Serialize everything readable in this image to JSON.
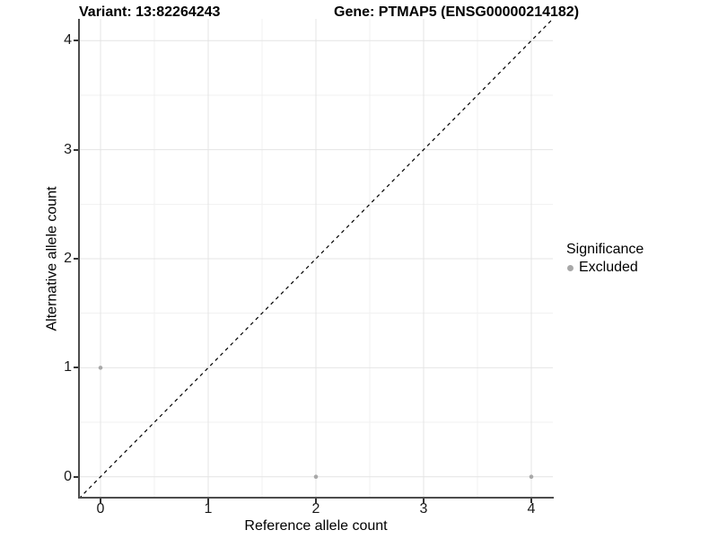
{
  "figure": {
    "title_left": "Variant: 13:82264243",
    "title_right": "Gene: PTMAP5 (ENSG00000214182)"
  },
  "chart_data": {
    "type": "scatter",
    "title": "Variant: 13:82264243 / Gene: PTMAP5 (ENSG00000214182)",
    "xlabel": "Reference allele count",
    "ylabel": "Alternative allele count",
    "xlim": [
      -0.2,
      4.2
    ],
    "ylim": [
      -0.2,
      4.2
    ],
    "xticks": [
      0,
      1,
      2,
      3,
      4
    ],
    "yticks": [
      0,
      1,
      2,
      3,
      4
    ],
    "x_minor_breaks": [
      0.5,
      1.5,
      2.5,
      3.5
    ],
    "y_minor_breaks": [
      0.5,
      1.5,
      2.5,
      3.5
    ],
    "grid": "major+minor",
    "reference_line": {
      "type": "identity y=x",
      "style": "dashed",
      "color": "#000000"
    },
    "series": [
      {
        "name": "Excluded",
        "color": "#a8a8a8",
        "marker": "circle",
        "marker_radius_px": 2.3,
        "points": [
          [
            0,
            1
          ],
          [
            2,
            0
          ],
          [
            4,
            0
          ]
        ]
      }
    ],
    "legend": {
      "title": "Significance",
      "position": "right",
      "entries": [
        {
          "label": "Excluded",
          "color": "#a8a8a8"
        }
      ]
    },
    "style": {
      "major_grid_color": "#e4e4e4",
      "minor_grid_color": "#f1f1f1",
      "axis_line_color": "#4d4d4d",
      "tick_color": "#333333",
      "background": "#ffffff"
    }
  }
}
